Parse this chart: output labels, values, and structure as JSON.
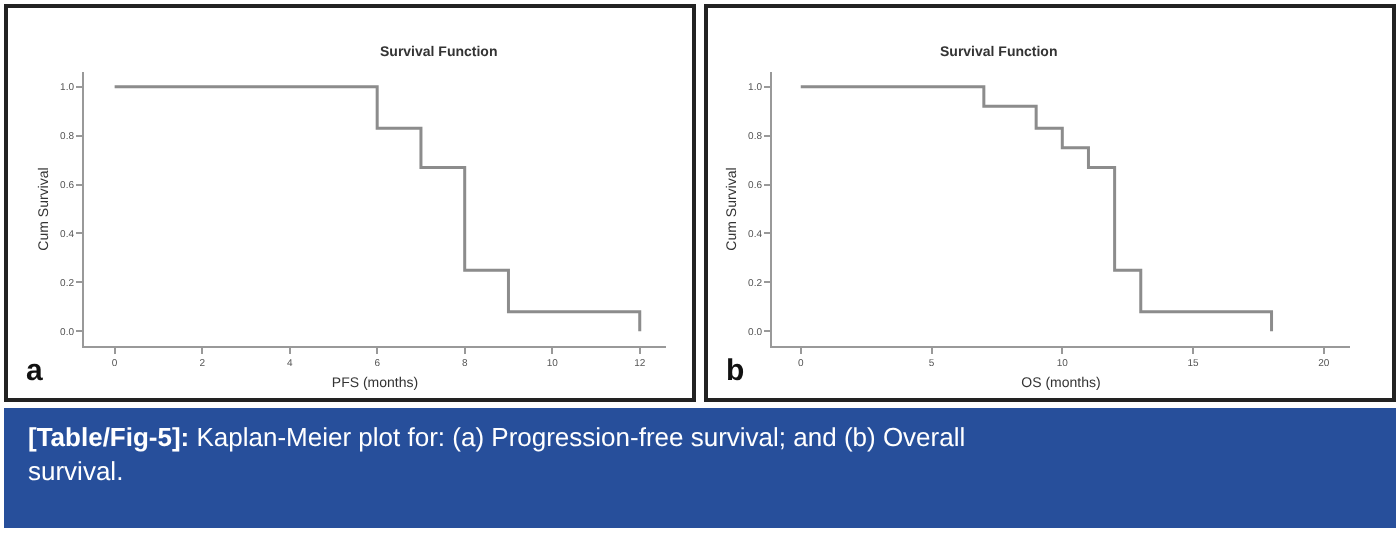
{
  "chart_data": [
    {
      "type": "step",
      "title": "Survival Function",
      "xlabel": "PFS (months)",
      "ylabel": "Cum Survival",
      "x": [
        0,
        6,
        7,
        8,
        9,
        12
      ],
      "series": [
        {
          "color": "#8c8c8c",
          "values": [
            1.0,
            0.83,
            0.67,
            0.25,
            0.08,
            0.0
          ]
        }
      ],
      "xlim": [
        -0.7,
        12.6
      ],
      "xticks": [
        0,
        2,
        4,
        6,
        8,
        10,
        12
      ],
      "ylim": [
        -0.06,
        1.06
      ],
      "yticks": [
        {
          "value": 0,
          "label": "0.0"
        },
        {
          "value": 0.2,
          "label": "0.2"
        },
        {
          "value": 0.4,
          "label": "0.4"
        },
        {
          "value": 0.6,
          "label": "0.6"
        },
        {
          "value": 0.8,
          "label": "0.8"
        },
        {
          "value": 1,
          "label": "1.0"
        }
      ],
      "annotations": [
        "a"
      ]
    },
    {
      "type": "step",
      "title": "Survival Function",
      "xlabel": "OS (months)",
      "ylabel": "Cum Survival",
      "x": [
        0,
        7,
        9,
        10,
        11,
        12,
        13,
        18
      ],
      "series": [
        {
          "color": "#8c8c8c",
          "values": [
            1.0,
            0.92,
            0.83,
            0.75,
            0.67,
            0.25,
            0.08,
            0.0
          ]
        }
      ],
      "xlim": [
        -1.1,
        21.0
      ],
      "xticks": [
        0,
        5,
        10,
        15,
        20
      ],
      "ylim": [
        -0.06,
        1.06
      ],
      "yticks": [
        {
          "value": 0,
          "label": "0.0"
        },
        {
          "value": 0.2,
          "label": "0.2"
        },
        {
          "value": 0.4,
          "label": "0.4"
        },
        {
          "value": 0.6,
          "label": "0.6"
        },
        {
          "value": 0.8,
          "label": "0.8"
        },
        {
          "value": 1,
          "label": "1.0"
        }
      ],
      "annotations": [
        "b",
        "[Table/Fig-5]: Kaplan-Meier plot for: (a) Progression-free survival; and (b) Overall survival."
      ]
    }
  ]
}
